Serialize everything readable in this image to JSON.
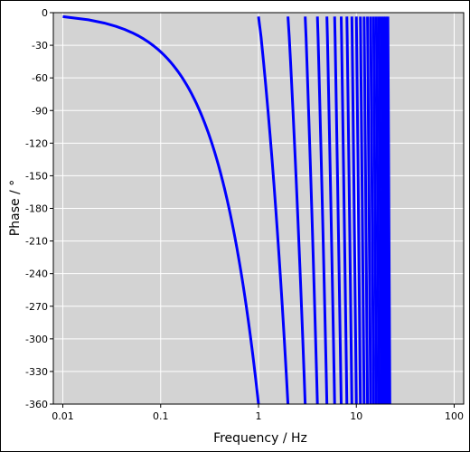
{
  "chart_data": {
    "type": "line",
    "title": "",
    "xlabel": "Frequency / Hz",
    "ylabel": "Phase / °",
    "x_scale": "log",
    "xlim": [
      0.008,
      125
    ],
    "ylim": [
      -360,
      0
    ],
    "x_ticks": [
      0.01,
      0.1,
      1,
      10,
      100
    ],
    "x_tick_labels": [
      "0.01",
      "0.1",
      "1",
      "10",
      "100"
    ],
    "y_ticks": [
      0,
      -30,
      -60,
      -90,
      -120,
      -150,
      -180,
      -210,
      -240,
      -270,
      -300,
      -330,
      -360
    ],
    "y_tick_labels": [
      "0",
      "-30",
      "-60",
      "-90",
      "-120",
      "-150",
      "-180",
      "-210",
      "-240",
      "-270",
      "-300",
      "-330",
      "-360"
    ],
    "grid": true,
    "background_color": "#d3d3d3",
    "grid_color": "#ffffff",
    "series": [
      {
        "color": "#0000ff",
        "x_range": [
          0.01,
          22
        ],
        "description_of_shape": "phase of a linear-phase delay wrapped to [-360, 0]: y = -360 * frac(x)",
        "points": [
          {
            "x": 0.01,
            "y": -3.6
          },
          {
            "x": 0.02,
            "y": -7.2
          },
          {
            "x": 0.05,
            "y": -18
          },
          {
            "x": 0.1,
            "y": -36
          },
          {
            "x": 0.2,
            "y": -72
          },
          {
            "x": 0.3,
            "y": -108
          },
          {
            "x": 0.5,
            "y": -180
          },
          {
            "x": 0.7,
            "y": -252
          },
          {
            "x": 0.9,
            "y": -324
          },
          {
            "x": 1.0,
            "y": -360
          }
        ],
        "wraps": [
          1,
          2,
          3,
          4,
          5,
          6,
          7,
          8,
          9,
          10,
          11,
          12,
          13,
          14,
          15,
          16,
          17,
          18,
          19,
          20,
          21,
          22
        ]
      }
    ]
  }
}
